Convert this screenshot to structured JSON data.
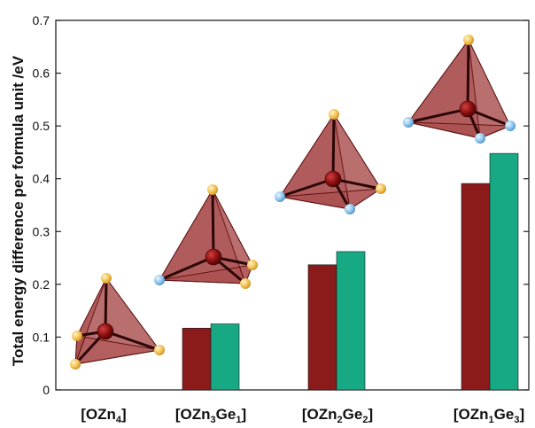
{
  "chart_data": {
    "type": "bar",
    "ylabel": "Total energy difference per formula unit /eV",
    "ylim": [
      0,
      0.7
    ],
    "yticks": [
      0,
      0.1,
      0.2,
      0.3,
      0.4,
      0.5,
      0.6,
      0.7
    ],
    "ytick_labels": [
      "0",
      "0.1",
      "0.2",
      "0.3",
      "0.4",
      "0.5",
      "0.6",
      "0.7"
    ],
    "categories": [
      "[OZn4]",
      "[OZn3Ge1]",
      "[OZn2Ge2]",
      "[OZn1Ge3]"
    ],
    "category_labels": [
      [
        {
          "t": "[OZn",
          "sub": false
        },
        {
          "t": "4",
          "sub": true
        },
        {
          "t": "]",
          "sub": false
        }
      ],
      [
        {
          "t": "[OZn",
          "sub": false
        },
        {
          "t": "3",
          "sub": true
        },
        {
          "t": "Ge",
          "sub": false
        },
        {
          "t": "1",
          "sub": true
        },
        {
          "t": "]",
          "sub": false
        }
      ],
      [
        {
          "t": "[OZn",
          "sub": false
        },
        {
          "t": "2",
          "sub": true
        },
        {
          "t": "Ge",
          "sub": false
        },
        {
          "t": "2",
          "sub": true
        },
        {
          "t": "]",
          "sub": false
        }
      ],
      [
        {
          "t": "[OZn",
          "sub": false
        },
        {
          "t": "1",
          "sub": true
        },
        {
          "t": "Ge",
          "sub": false
        },
        {
          "t": "3",
          "sub": true
        },
        {
          "t": "]",
          "sub": false
        }
      ]
    ],
    "series": [
      {
        "values": [
          0,
          0.117,
          0.237,
          0.391
        ],
        "color": "#8b1a1a"
      },
      {
        "values": [
          0,
          0.125,
          0.262,
          0.448
        ],
        "color": "#17a884"
      }
    ],
    "grid": false,
    "insets": [
      {
        "category": "[OZn4]",
        "apex_atom": "Zn",
        "base_atoms": [
          "Zn",
          "Zn",
          "Zn"
        ]
      },
      {
        "category": "[OZn3Ge1]",
        "apex_atom": "Zn",
        "base_atoms": [
          "Ge",
          "Zn",
          "Zn"
        ]
      },
      {
        "category": "[OZn2Ge2]",
        "apex_atom": "Zn",
        "base_atoms": [
          "Ge",
          "Ge",
          "Zn"
        ]
      },
      {
        "category": "[OZn1Ge3]",
        "apex_atom": "Zn",
        "base_atoms": [
          "Ge",
          "Ge",
          "Ge"
        ]
      }
    ],
    "colors": {
      "tetra_fill": "#a23c3c",
      "tetra_edge": "#5a1010",
      "center_atom": "#8b0d0d",
      "zn_atom": "#f2c14e",
      "ge_atom": "#8ec5ee"
    }
  }
}
